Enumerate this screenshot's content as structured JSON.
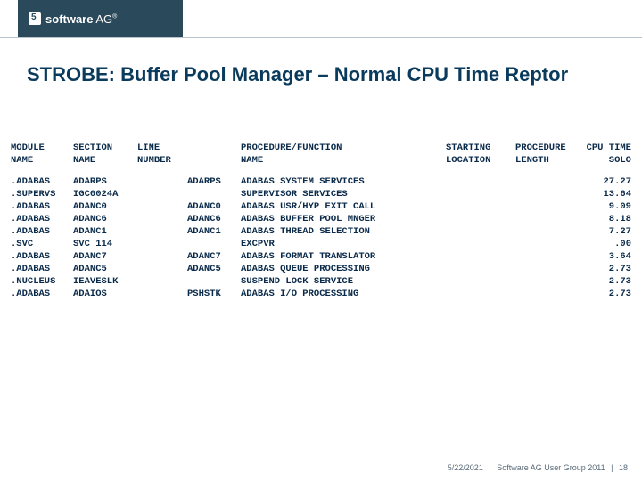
{
  "brand": {
    "company_bold": "software",
    "company_light": " AG",
    "superscript": "®"
  },
  "title": "STROBE: Buffer Pool Manager – Normal CPU Time Reptor",
  "table": {
    "headers": {
      "module": "MODULE\n NAME",
      "section": "SECTION\n  NAME",
      "line": "LINE\nNUMBER",
      "proc": "",
      "func": "PROCEDURE/FUNCTION\n      NAME",
      "start": "STARTING\nLOCATION",
      "plen": "PROCEDURE\n  LENGTH",
      "cpu": "CPU TIME\n  SOLO"
    },
    "rows": [
      {
        "module": ".ADABAS",
        "section": "ADARPS",
        "line": "",
        "proc": "ADARPS",
        "func": "ADABAS SYSTEM SERVICES",
        "start": "",
        "plen": "",
        "cpu": "27.27"
      },
      {
        "module": ".SUPERVS",
        "section": "IGC0024A",
        "line": "",
        "proc": "",
        "func": "SUPERVISOR SERVICES",
        "start": "",
        "plen": "",
        "cpu": "13.64"
      },
      {
        "module": ".ADABAS",
        "section": "ADANC0",
        "line": "",
        "proc": "ADANC0",
        "func": "ADABAS USR/HYP EXIT CALL",
        "start": "",
        "plen": "",
        "cpu": "9.09"
      },
      {
        "module": ".ADABAS",
        "section": "ADANC6",
        "line": "",
        "proc": "ADANC6",
        "func": "ADABAS BUFFER POOL MNGER",
        "start": "",
        "plen": "",
        "cpu": "8.18"
      },
      {
        "module": ".ADABAS",
        "section": "ADANC1",
        "line": "",
        "proc": "ADANC1",
        "func": "ADABAS THREAD SELECTION",
        "start": "",
        "plen": "",
        "cpu": "7.27"
      },
      {
        "module": ".SVC",
        "section": "SVC 114",
        "line": "",
        "proc": "",
        "func": "EXCPVR",
        "start": "",
        "plen": "",
        "cpu": ".00"
      },
      {
        "module": ".ADABAS",
        "section": "ADANC7",
        "line": "",
        "proc": "ADANC7",
        "func": "ADABAS FORMAT TRANSLATOR",
        "start": "",
        "plen": "",
        "cpu": "3.64"
      },
      {
        "module": ".ADABAS",
        "section": "ADANC5",
        "line": "",
        "proc": "ADANC5",
        "func": "ADABAS QUEUE PROCESSING",
        "start": "",
        "plen": "",
        "cpu": "2.73"
      },
      {
        "module": ".NUCLEUS",
        "section": "IEAVESLK",
        "line": "",
        "proc": "",
        "func": "SUSPEND LOCK SERVICE",
        "start": "",
        "plen": "",
        "cpu": "2.73"
      },
      {
        "module": ".ADABAS",
        "section": "ADAIOS",
        "line": "",
        "proc": "PSHSTK",
        "func": "ADABAS I/O PROCESSING",
        "start": "",
        "plen": "",
        "cpu": "2.73"
      }
    ]
  },
  "footer": {
    "date": "5/22/2021",
    "event": "Software AG User Group 2011",
    "page": "18"
  },
  "colors": {
    "header_bg": "#2a4a5c",
    "title_color": "#0a3a5c",
    "text_color": "#0a2a4a",
    "footer_color": "#5a6a78",
    "divider": "#b8c4cc",
    "page_bg": "#ffffff"
  }
}
